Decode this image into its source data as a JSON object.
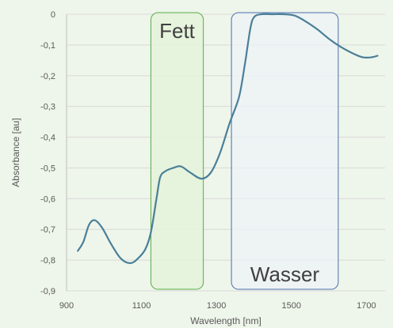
{
  "chart_data": {
    "type": "line",
    "xlabel": "Wavelength [nm]",
    "ylabel": "Absorbance [au]",
    "xlim": [
      900,
      1750
    ],
    "ylim": [
      -0.9,
      0
    ],
    "x_ticks": [
      900,
      1100,
      1300,
      1500,
      1700
    ],
    "x_tick_labels": [
      "900",
      "1100",
      "1300",
      "1500",
      "1700"
    ],
    "y_ticks": [
      0,
      -0.1,
      -0.2,
      -0.3,
      -0.4,
      -0.5,
      -0.6,
      -0.7,
      -0.8,
      -0.9
    ],
    "y_tick_labels": [
      "0",
      "-0,1",
      "-0,2",
      "-0,3",
      "-0,4",
      "-0,5",
      "-0,6",
      "-0,7",
      "-0,8",
      "-0,9"
    ],
    "grid": "horizontal",
    "legend": "none",
    "colors": {
      "line": "#4a7f98",
      "fett_fill": "#e4f3dc",
      "fett_border": "#5aab47",
      "wasser_fill": "#eef1f7",
      "wasser_border": "#4a6fb0",
      "grid": "#d9d9d9",
      "axis": "#bfbfbf"
    },
    "series": [
      {
        "values": [
          {
            "x": 930,
            "y": -0.77
          },
          {
            "x": 945,
            "y": -0.74
          },
          {
            "x": 960,
            "y": -0.685
          },
          {
            "x": 975,
            "y": -0.67
          },
          {
            "x": 995,
            "y": -0.695
          },
          {
            "x": 1020,
            "y": -0.75
          },
          {
            "x": 1045,
            "y": -0.795
          },
          {
            "x": 1070,
            "y": -0.81
          },
          {
            "x": 1090,
            "y": -0.795
          },
          {
            "x": 1110,
            "y": -0.765
          },
          {
            "x": 1125,
            "y": -0.71
          },
          {
            "x": 1140,
            "y": -0.6
          },
          {
            "x": 1150,
            "y": -0.53
          },
          {
            "x": 1165,
            "y": -0.51
          },
          {
            "x": 1185,
            "y": -0.5
          },
          {
            "x": 1205,
            "y": -0.495
          },
          {
            "x": 1230,
            "y": -0.515
          },
          {
            "x": 1260,
            "y": -0.535
          },
          {
            "x": 1285,
            "y": -0.515
          },
          {
            "x": 1310,
            "y": -0.45
          },
          {
            "x": 1335,
            "y": -0.355
          },
          {
            "x": 1360,
            "y": -0.27
          },
          {
            "x": 1375,
            "y": -0.17
          },
          {
            "x": 1390,
            "y": -0.05
          },
          {
            "x": 1400,
            "y": -0.01
          },
          {
            "x": 1420,
            "y": 0.0
          },
          {
            "x": 1450,
            "y": 0.0
          },
          {
            "x": 1480,
            "y": 0.0
          },
          {
            "x": 1510,
            "y": -0.005
          },
          {
            "x": 1540,
            "y": -0.025
          },
          {
            "x": 1570,
            "y": -0.05
          },
          {
            "x": 1600,
            "y": -0.08
          },
          {
            "x": 1630,
            "y": -0.105
          },
          {
            "x": 1660,
            "y": -0.125
          },
          {
            "x": 1690,
            "y": -0.14
          },
          {
            "x": 1715,
            "y": -0.14
          },
          {
            "x": 1730,
            "y": -0.135
          }
        ]
      }
    ],
    "annotations": [
      {
        "label": "Fett",
        "x_range": [
          1125,
          1265
        ],
        "y_range": [
          -0.895,
          0.0
        ],
        "label_position": "top"
      },
      {
        "label": "Wasser",
        "x_range": [
          1340,
          1625
        ],
        "y_range": [
          -0.895,
          0.0
        ],
        "label_position": "bottom"
      }
    ]
  }
}
